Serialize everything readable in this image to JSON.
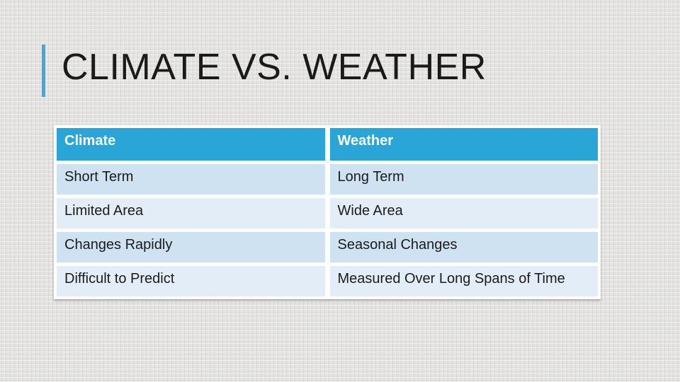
{
  "slide": {
    "title": "CLIMATE VS. WEATHER",
    "table": {
      "headers": [
        "Climate",
        "Weather"
      ],
      "rows": [
        [
          "Short Term",
          "Long Term"
        ],
        [
          "Limited Area",
          "Wide Area"
        ],
        [
          "Changes Rapidly",
          "Seasonal Changes"
        ],
        [
          "Difficult to Predict",
          "Measured Over Long Spans of Time"
        ]
      ]
    },
    "colors": {
      "background": "#e4e3e2",
      "accent_bar": "#3fa9dc",
      "title_text": "#1a1a1a",
      "header_bg": "#2aa5d8",
      "header_text": "#ffffff",
      "row_odd_bg": "#cfe2f2",
      "row_even_bg": "#e2edf8",
      "cell_text": "#1b1b1b",
      "grid_line": "#ffffff"
    }
  }
}
